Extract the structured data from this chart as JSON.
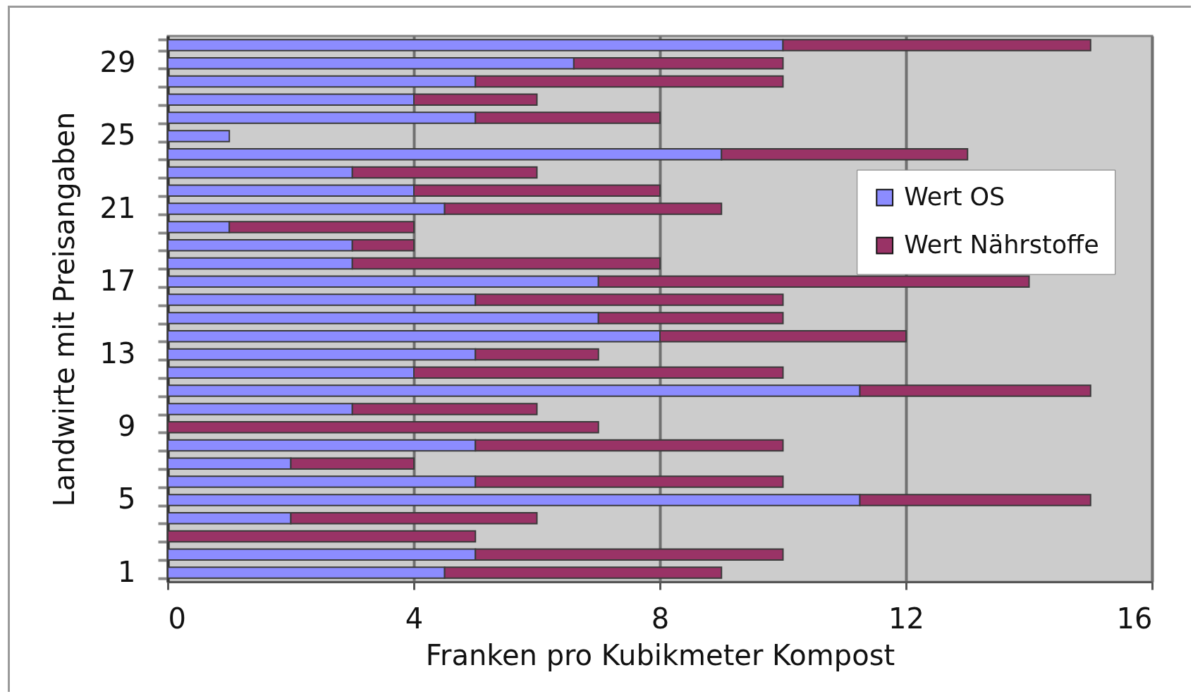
{
  "chart_data": {
    "type": "bar",
    "orientation": "horizontal",
    "stacked": true,
    "xlabel": "Franken pro Kubikmeter Kompost",
    "ylabel": "Landwirte mit Preisangaben",
    "categories": [
      null,
      "29",
      null,
      null,
      null,
      "25",
      null,
      null,
      null,
      "21",
      null,
      null,
      null,
      "17",
      null,
      null,
      null,
      "13",
      null,
      null,
      null,
      "9",
      null,
      null,
      null,
      "5",
      null,
      null,
      null,
      "1"
    ],
    "series": [
      {
        "name": "Wert OS",
        "color": "#8c8cff",
        "values": [
          10,
          6.6,
          5,
          4,
          5,
          1,
          9,
          3,
          4,
          4.5,
          1,
          3,
          3,
          7,
          5,
          7,
          8,
          5,
          4,
          11.25,
          3,
          null,
          5,
          2,
          5,
          11.25,
          2,
          null,
          5,
          4.5
        ]
      },
      {
        "name": "Wert Nährstoffe",
        "color": "#993366",
        "values": [
          5,
          3.4,
          5,
          2,
          3,
          null,
          4,
          3,
          4,
          4.5,
          3,
          1,
          5,
          7,
          5,
          3,
          4,
          2,
          6,
          3.75,
          3,
          7,
          5,
          2,
          5,
          3.75,
          4,
          5,
          5,
          4.5
        ]
      }
    ],
    "xlim": [
      0,
      16
    ],
    "xticks": [
      0,
      4,
      8,
      12,
      16
    ],
    "grid": "x",
    "legend": "right"
  }
}
